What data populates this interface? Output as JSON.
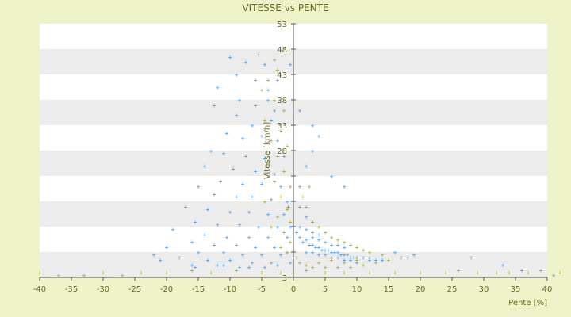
{
  "chart_data": {
    "type": "scatter",
    "title": "VITESSE vs PENTE",
    "xlabel": "Pente [%]",
    "ylabel": "Vitesse [km/h]",
    "xlim": [
      -40,
      40
    ],
    "ylim": [
      3,
      53
    ],
    "xticks": [
      -40,
      -35,
      -30,
      -25,
      -20,
      -15,
      -10,
      -5,
      0,
      5,
      10,
      15,
      20,
      25,
      30,
      35,
      40
    ],
    "yticks": [
      3,
      8,
      13,
      18,
      23,
      28,
      33,
      38,
      43,
      48,
      53
    ],
    "ytick_labels": [
      "3",
      "",
      "",
      "",
      "",
      "28",
      "33",
      "38",
      "43",
      "48",
      "53"
    ],
    "grid": "horizontal bands",
    "band_colors": [
      "#ffffff",
      "#ececec"
    ],
    "colors": {
      "background": "#eef2c8",
      "axis": "#555555",
      "text": "#6b6b1c",
      "series_blue": "#2f8ee0",
      "series_olive": "#9a9a22"
    },
    "series": [
      {
        "color": "#2f8ee0",
        "points": [
          [
            -5.5,
            47
          ],
          [
            -7.5,
            45.5
          ],
          [
            -10,
            46.5
          ],
          [
            -4.5,
            45
          ],
          [
            -12,
            40.5
          ],
          [
            -8.5,
            38
          ],
          [
            -6,
            37
          ],
          [
            -4,
            38
          ],
          [
            -12.5,
            37
          ],
          [
            -9,
            35
          ],
          [
            -6.5,
            33
          ],
          [
            -3.5,
            34
          ],
          [
            -10.5,
            31.5
          ],
          [
            -8,
            30.5
          ],
          [
            -5,
            31
          ],
          [
            -2.5,
            30
          ],
          [
            -13,
            28
          ],
          [
            -11,
            27.5
          ],
          [
            -7.5,
            27
          ],
          [
            -4.5,
            26.5
          ],
          [
            -1.5,
            27
          ],
          [
            -14,
            25
          ],
          [
            -9.5,
            24.5
          ],
          [
            -6,
            24
          ],
          [
            -3,
            23.5
          ],
          [
            -11.5,
            22
          ],
          [
            -8,
            21.5
          ],
          [
            -5,
            21.5
          ],
          [
            -2,
            21
          ],
          [
            -15,
            21
          ],
          [
            -12.5,
            19.5
          ],
          [
            -9,
            19
          ],
          [
            -6.5,
            19
          ],
          [
            -3.5,
            18.5
          ],
          [
            -1,
            18
          ],
          [
            -17,
            17
          ],
          [
            -13.5,
            16.5
          ],
          [
            -10,
            16
          ],
          [
            -7,
            16
          ],
          [
            -4,
            15.5
          ],
          [
            -1.5,
            15.5
          ],
          [
            -15.5,
            14
          ],
          [
            -12,
            13.5
          ],
          [
            -8.5,
            13.5
          ],
          [
            -5.5,
            13
          ],
          [
            -2.5,
            13
          ],
          [
            -19,
            12.5
          ],
          [
            -14,
            11.5
          ],
          [
            -10.5,
            11
          ],
          [
            -7,
            11
          ],
          [
            -4,
            11
          ],
          [
            -1,
            11
          ],
          [
            -16,
            10
          ],
          [
            -12.5,
            9.5
          ],
          [
            -9,
            9.5
          ],
          [
            -6,
            9
          ],
          [
            -3,
            9
          ],
          [
            -20,
            9
          ],
          [
            -15,
            8
          ],
          [
            -11,
            8
          ],
          [
            -8,
            7.5
          ],
          [
            -5,
            7.5
          ],
          [
            -2,
            7.5
          ],
          [
            -18,
            7
          ],
          [
            -13.5,
            6.5
          ],
          [
            -10,
            6.5
          ],
          [
            -6.5,
            6
          ],
          [
            -3.5,
            6
          ],
          [
            -0.5,
            6
          ],
          [
            -16,
            5.5
          ],
          [
            -12,
            5.5
          ],
          [
            -8.5,
            5
          ],
          [
            -4.5,
            5
          ],
          [
            -21,
            6.5
          ],
          [
            -22,
            7.5
          ],
          [
            -15.5,
            5
          ],
          [
            -11,
            5.5
          ],
          [
            -7,
            5
          ],
          [
            -2.5,
            5.5
          ],
          [
            -1,
            8
          ],
          [
            -0.5,
            13
          ],
          [
            -0.8,
            17
          ],
          [
            0.5,
            12
          ],
          [
            1,
            11
          ],
          [
            1.5,
            10
          ],
          [
            2,
            10.5
          ],
          [
            2.5,
            9.5
          ],
          [
            3,
            9.5
          ],
          [
            3.5,
            9
          ],
          [
            4,
            9
          ],
          [
            4.5,
            8.5
          ],
          [
            5,
            8.5
          ],
          [
            5.5,
            8.5
          ],
          [
            6,
            8
          ],
          [
            6.5,
            8
          ],
          [
            7,
            8
          ],
          [
            7.5,
            7.5
          ],
          [
            8,
            7.5
          ],
          [
            8.5,
            7.5
          ],
          [
            9,
            7
          ],
          [
            9.5,
            7
          ],
          [
            10,
            7
          ],
          [
            11,
            7
          ],
          [
            12,
            6.5
          ],
          [
            13,
            6.5
          ],
          [
            14,
            6.5
          ],
          [
            2,
            8
          ],
          [
            3,
            8
          ],
          [
            4,
            7.5
          ],
          [
            5,
            7.5
          ],
          [
            6,
            7
          ],
          [
            7,
            7
          ],
          [
            8,
            6.5
          ],
          [
            9,
            6.5
          ],
          [
            10,
            6
          ],
          [
            3,
            11
          ],
          [
            4,
            10.5
          ],
          [
            5,
            10
          ],
          [
            6,
            9.5
          ],
          [
            7,
            9.5
          ],
          [
            8,
            9
          ],
          [
            1,
            13
          ],
          [
            2,
            12.5
          ],
          [
            3,
            12
          ],
          [
            4,
            11.5
          ],
          [
            2,
            15
          ],
          [
            3,
            14
          ],
          [
            1,
            17
          ],
          [
            1,
            21
          ],
          [
            2,
            25
          ],
          [
            3,
            28
          ],
          [
            1,
            36
          ],
          [
            3,
            33
          ],
          [
            4,
            31
          ],
          [
            6,
            23
          ],
          [
            8,
            21
          ],
          [
            16,
            8
          ],
          [
            18,
            7
          ],
          [
            19,
            7.5
          ],
          [
            28,
            7
          ],
          [
            33,
            5.5
          ],
          [
            36,
            4.5
          ],
          [
            41,
            3.5
          ],
          [
            -0.5,
            45
          ],
          [
            -2.5,
            42
          ],
          [
            -6,
            42
          ],
          [
            -9,
            43
          ],
          [
            -3,
            36
          ],
          [
            -4,
            40
          ]
        ]
      },
      {
        "color": "#9a9a22",
        "points": [
          [
            -3,
            46
          ],
          [
            -2.5,
            44
          ],
          [
            -4,
            42
          ],
          [
            -5,
            40
          ],
          [
            -3,
            38
          ],
          [
            -1.5,
            36
          ],
          [
            -4.5,
            34
          ],
          [
            -2,
            32
          ],
          [
            -3.5,
            30
          ],
          [
            -1,
            29
          ],
          [
            -2.5,
            27
          ],
          [
            -4,
            25.5
          ],
          [
            -1.5,
            24
          ],
          [
            -3,
            22
          ],
          [
            -0.5,
            21
          ],
          [
            -2,
            19
          ],
          [
            -4.5,
            18
          ],
          [
            -1,
            16.5
          ],
          [
            -2.5,
            15
          ],
          [
            -0.5,
            14
          ],
          [
            -3.5,
            13
          ],
          [
            -1.5,
            12
          ],
          [
            -0.5,
            10
          ],
          [
            -2,
            9
          ],
          [
            -1,
            8
          ],
          [
            0.5,
            7
          ],
          [
            1,
            6
          ],
          [
            2,
            5.5
          ],
          [
            3,
            5
          ],
          [
            5,
            5
          ],
          [
            7,
            5
          ],
          [
            9,
            5
          ],
          [
            11,
            5.5
          ],
          [
            13,
            6
          ],
          [
            15,
            6.5
          ],
          [
            17,
            7
          ],
          [
            4,
            6
          ],
          [
            6,
            6.5
          ],
          [
            8,
            6
          ],
          [
            10,
            6.5
          ],
          [
            12,
            7
          ],
          [
            14,
            7.5
          ],
          [
            3,
            14
          ],
          [
            2,
            17
          ],
          [
            4,
            13
          ],
          [
            5,
            12
          ],
          [
            6,
            11
          ],
          [
            7,
            10.5
          ],
          [
            8,
            10
          ],
          [
            9,
            9.5
          ],
          [
            10,
            9
          ],
          [
            11,
            8.5
          ],
          [
            12,
            8
          ],
          [
            1.5,
            19
          ],
          [
            2.5,
            21
          ],
          [
            -40,
            4
          ],
          [
            -37,
            3.5
          ],
          [
            -33,
            3.5
          ],
          [
            -30,
            4
          ],
          [
            -27,
            3.5
          ],
          [
            -24,
            4
          ],
          [
            -20,
            4
          ],
          [
            -16,
            4.5
          ],
          [
            -13,
            4
          ],
          [
            -9,
            4.5
          ],
          [
            -5,
            4
          ],
          [
            -2,
            4
          ],
          [
            0,
            4
          ],
          [
            2,
            4.5
          ],
          [
            5,
            4
          ],
          [
            8,
            4
          ],
          [
            12,
            4
          ],
          [
            16,
            4
          ],
          [
            20,
            4
          ],
          [
            24,
            4
          ],
          [
            26,
            4.5
          ],
          [
            29,
            4
          ],
          [
            32,
            4
          ],
          [
            34,
            4
          ],
          [
            37,
            4
          ],
          [
            39,
            4.5
          ],
          [
            42,
            4
          ]
        ]
      }
    ]
  }
}
